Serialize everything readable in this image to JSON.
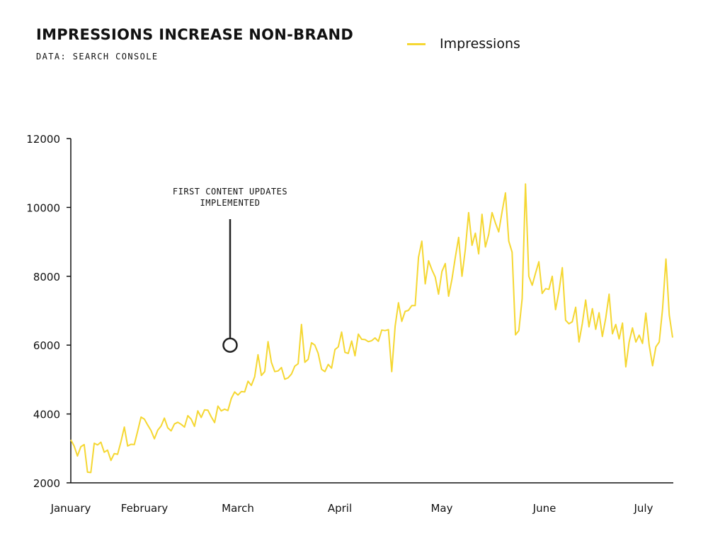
{
  "chart_data": {
    "type": "line",
    "title": "IMPRESSIONS INCREASE NON-BRAND",
    "subtitle": "DATA: SEARCH CONSOLE",
    "xlabel": "",
    "ylabel": "",
    "ylim": [
      2000,
      12000
    ],
    "y_ticks": [
      "2000",
      "4000",
      "6000",
      "8000",
      "10000",
      "12000"
    ],
    "x_ticks": [
      "January",
      "February",
      "March",
      "April",
      "May",
      "June",
      "July"
    ],
    "legend_position": "top-right",
    "grid": false,
    "series": [
      {
        "name": "Impressions",
        "color": "#f5d732",
        "x_start": "2020-01-01",
        "x_step_days": 1,
        "values": [
          3250,
          3070,
          2780,
          3050,
          3110,
          2310,
          2300,
          3150,
          3100,
          3180,
          2890,
          2950,
          2650,
          2850,
          2830,
          3190,
          3620,
          3070,
          3120,
          3110,
          3500,
          3910,
          3850,
          3680,
          3520,
          3280,
          3530,
          3650,
          3880,
          3600,
          3510,
          3710,
          3760,
          3700,
          3620,
          3950,
          3850,
          3640,
          4090,
          3900,
          4120,
          4110,
          3920,
          3750,
          4230,
          4090,
          4140,
          4100,
          4450,
          4640,
          4550,
          4650,
          4640,
          4950,
          4830,
          5080,
          5720,
          5120,
          5230,
          6100,
          5500,
          5230,
          5250,
          5350,
          5010,
          5050,
          5160,
          5390,
          5460,
          6600,
          5500,
          5590,
          6070,
          6000,
          5760,
          5300,
          5230,
          5440,
          5330,
          5870,
          5950,
          6380,
          5790,
          5760,
          6120,
          5690,
          6320,
          6170,
          6160,
          6100,
          6130,
          6210,
          6110,
          6440,
          6420,
          6450,
          5230,
          6550,
          7230,
          6690,
          6980,
          7010,
          7150,
          7150,
          8550,
          9020,
          7780,
          8450,
          8190,
          7980,
          7480,
          8140,
          8370,
          7420,
          7910,
          8550,
          9130,
          8000,
          8770,
          9850,
          8900,
          9250,
          8650,
          9800,
          8850,
          9220,
          9850,
          9550,
          9290,
          9880,
          10420,
          9020,
          8700,
          6300,
          6420,
          7350,
          10680,
          8000,
          7740,
          8090,
          8420,
          7500,
          7640,
          7620,
          8000,
          7030,
          7550,
          8250,
          6720,
          6620,
          6680,
          7100,
          6090,
          6630,
          7310,
          6530,
          7060,
          6460,
          6940,
          6250,
          6790,
          7480,
          6330,
          6600,
          6180,
          6640,
          5370,
          6090,
          6500,
          6090,
          6290,
          6050,
          6930,
          6000,
          5400,
          5950,
          6090,
          7050,
          8500,
          6870,
          6220
        ]
      }
    ],
    "annotations": [
      {
        "lines": [
          "FIRST CONTENT UPDATES",
          "IMPLEMENTED"
        ],
        "x": "2020-03-07",
        "y": 6000
      }
    ]
  }
}
